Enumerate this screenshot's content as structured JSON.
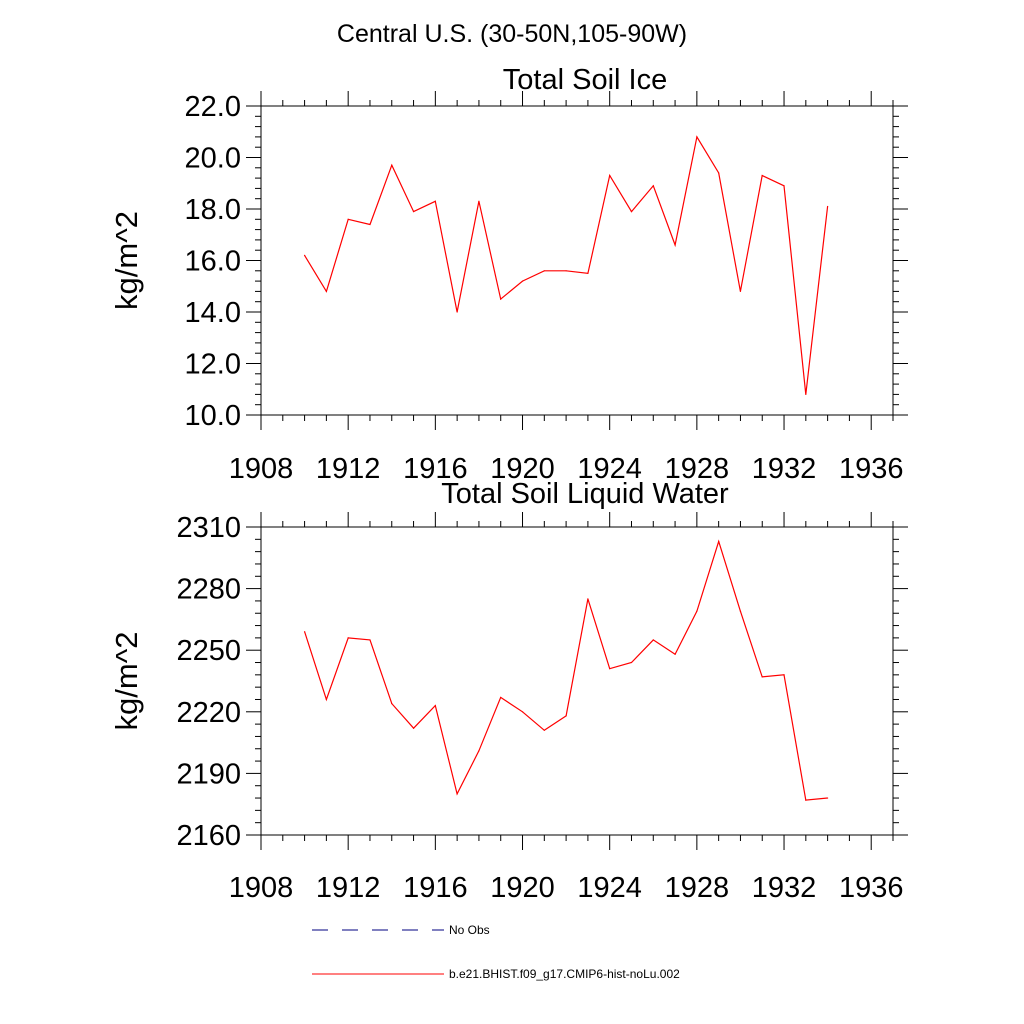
{
  "figure_title": "Central U.S. (30-50N,105-90W)",
  "legend": {
    "no_obs_label": "No Obs",
    "model_label": "b.e21.BHIST.f09_g17.CMIP6-hist-noLu.002",
    "no_obs_color": "#000080",
    "model_color": "#ff0000"
  },
  "chart_data": [
    {
      "type": "line",
      "title": "Total Soil Ice",
      "xlabel": "",
      "ylabel": "kg/m^2",
      "xlim": [
        1908,
        1937
      ],
      "ylim": [
        10.0,
        22.0
      ],
      "xticks": [
        "1908",
        "1912",
        "1916",
        "1920",
        "1924",
        "1928",
        "1932",
        "1936"
      ],
      "yticks": [
        "10.0",
        "12.0",
        "14.0",
        "16.0",
        "18.0",
        "20.0",
        "22.0"
      ],
      "series": [
        {
          "name": "b.e21.BHIST.f09_g17.CMIP6-hist-noLu.002",
          "color": "#ff0000",
          "x": [
            1910,
            1911,
            1912,
            1913,
            1914,
            1915,
            1916,
            1917,
            1918,
            1919,
            1920,
            1921,
            1922,
            1923,
            1924,
            1925,
            1926,
            1927,
            1928,
            1929,
            1930,
            1931,
            1932,
            1933,
            1934
          ],
          "y": [
            16.2,
            14.8,
            17.6,
            17.4,
            19.7,
            17.9,
            18.3,
            14.0,
            18.3,
            14.5,
            15.2,
            15.6,
            15.6,
            15.5,
            19.3,
            17.9,
            18.9,
            16.6,
            20.8,
            19.4,
            14.8,
            19.3,
            18.9,
            10.8,
            18.1
          ]
        }
      ]
    },
    {
      "type": "line",
      "title": "Total Soil Liquid Water",
      "xlabel": "",
      "ylabel": "kg/m^2",
      "xlim": [
        1908,
        1937
      ],
      "ylim": [
        2160,
        2310
      ],
      "xticks": [
        "1908",
        "1912",
        "1916",
        "1920",
        "1924",
        "1928",
        "1932",
        "1936"
      ],
      "yticks": [
        "2160",
        "2190",
        "2220",
        "2250",
        "2280",
        "2310"
      ],
      "series": [
        {
          "name": "b.e21.BHIST.f09_g17.CMIP6-hist-noLu.002",
          "color": "#ff0000",
          "x": [
            1910,
            1911,
            1912,
            1913,
            1914,
            1915,
            1916,
            1917,
            1918,
            1919,
            1920,
            1921,
            1922,
            1923,
            1924,
            1925,
            1926,
            1927,
            1928,
            1929,
            1930,
            1931,
            1932,
            1933,
            1934
          ],
          "y": [
            2259,
            2226,
            2256,
            2255,
            2224,
            2212,
            2223,
            2180,
            2201,
            2227,
            2220,
            2211,
            2218,
            2275,
            2241,
            2244,
            2255,
            2248,
            2269,
            2303,
            2269,
            2237,
            2238,
            2177,
            2178
          ]
        }
      ]
    }
  ]
}
